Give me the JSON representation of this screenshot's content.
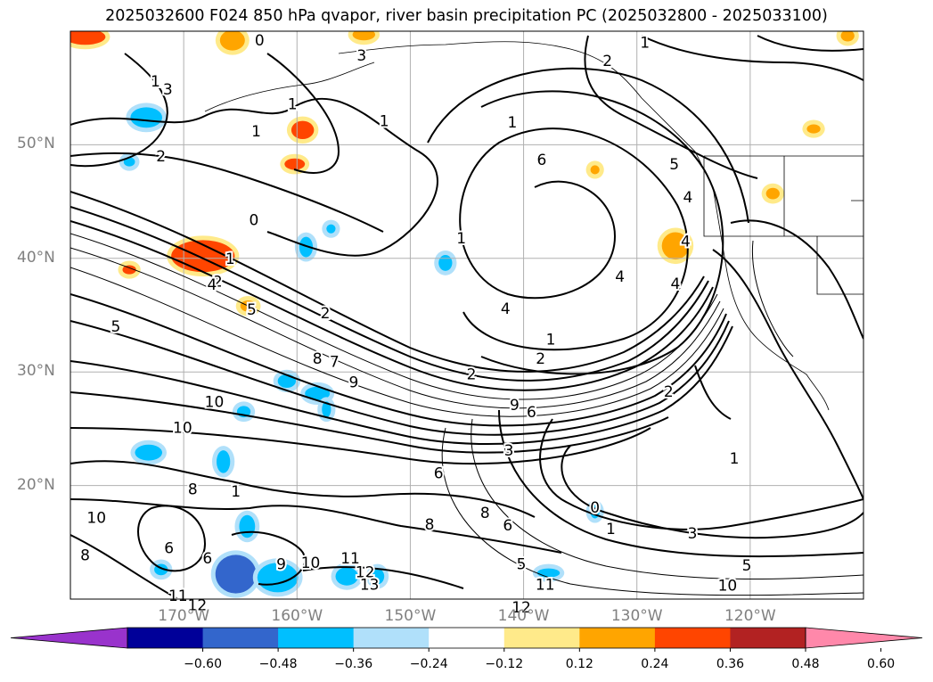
{
  "title": "2025032600 F024 850 hPa qvapor, river basin precipitation PC (2025032800 - 2025033100)",
  "map": {
    "projection": "cylindrical",
    "extent": {
      "lon_min": -180,
      "lon_max": -110,
      "lat_min": 10,
      "lat_max": 60
    },
    "background": "#ffffff",
    "grid_color": "#b0b0b0",
    "contour_color": "#000000",
    "lat_labels": [
      {
        "value": 50,
        "text": "50°N"
      },
      {
        "value": 40,
        "text": "40°N"
      },
      {
        "value": 30,
        "text": "30°N"
      },
      {
        "value": 20,
        "text": "20°N"
      }
    ],
    "lon_labels": [
      {
        "value": -170,
        "text": "170°W"
      },
      {
        "value": -160,
        "text": "160°W"
      },
      {
        "value": -150,
        "text": "150°W"
      },
      {
        "value": -140,
        "text": "140°W"
      },
      {
        "value": -130,
        "text": "130°W"
      },
      {
        "value": -120,
        "text": "120°W"
      }
    ],
    "contour_labels": [
      {
        "text": "2",
        "lon": -172,
        "lat": 49
      },
      {
        "text": "2",
        "lon": -167,
        "lat": 38
      },
      {
        "text": "4",
        "lon": -167.5,
        "lat": 37.7
      },
      {
        "text": "1",
        "lon": -165.9,
        "lat": 40
      },
      {
        "text": "0",
        "lon": -163.8,
        "lat": 43.4
      },
      {
        "text": "5",
        "lon": -164,
        "lat": 35.5
      },
      {
        "text": "2",
        "lon": -157.5,
        "lat": 35.2
      },
      {
        "text": "5",
        "lon": -176,
        "lat": 34
      },
      {
        "text": "8",
        "lon": -158.2,
        "lat": 31.2
      },
      {
        "text": "7",
        "lon": -156.7,
        "lat": 30.9
      },
      {
        "text": "9",
        "lon": -155,
        "lat": 29.1
      },
      {
        "text": "1",
        "lon": -145.5,
        "lat": 41.8
      },
      {
        "text": "4",
        "lon": -141.6,
        "lat": 35.6
      },
      {
        "text": "2",
        "lon": -144.6,
        "lat": 29.8
      },
      {
        "text": "4",
        "lon": -131.5,
        "lat": 38.4
      },
      {
        "text": "1",
        "lon": -137.6,
        "lat": 32.9
      },
      {
        "text": "2",
        "lon": -138.5,
        "lat": 31.2
      },
      {
        "text": "9",
        "lon": -140.8,
        "lat": 27.1
      },
      {
        "text": "6",
        "lon": -139.3,
        "lat": 26.5
      },
      {
        "text": "3",
        "lon": -141.3,
        "lat": 23.1
      },
      {
        "text": "0",
        "lon": -133.7,
        "lat": 18.1
      },
      {
        "text": "1",
        "lon": -132.3,
        "lat": 16.2
      },
      {
        "text": "1",
        "lon": -141,
        "lat": 52
      },
      {
        "text": "6",
        "lon": -138.4,
        "lat": 48.7
      },
      {
        "text": "2",
        "lon": -132.6,
        "lat": 57.4
      },
      {
        "text": "1",
        "lon": -129.3,
        "lat": 59
      },
      {
        "text": "5",
        "lon": -126.7,
        "lat": 48.3
      },
      {
        "text": "4",
        "lon": -125.5,
        "lat": 45.4
      },
      {
        "text": "4",
        "lon": -125.7,
        "lat": 41.5
      },
      {
        "text": "4",
        "lon": -126.6,
        "lat": 37.8
      },
      {
        "text": "2",
        "lon": -127.2,
        "lat": 28.3
      },
      {
        "text": "1",
        "lon": -121.4,
        "lat": 22.4
      },
      {
        "text": "3",
        "lon": -125.1,
        "lat": 15.8
      },
      {
        "text": "5",
        "lon": -120.3,
        "lat": 13
      },
      {
        "text": "1",
        "lon": -172.5,
        "lat": 55.6
      },
      {
        "text": "3",
        "lon": -171.4,
        "lat": 54.9
      },
      {
        "text": "1",
        "lon": -163.6,
        "lat": 51.2
      },
      {
        "text": "0",
        "lon": -163.3,
        "lat": 59.2
      },
      {
        "text": "1",
        "lon": -160.4,
        "lat": 53.6
      },
      {
        "text": "3",
        "lon": -154.3,
        "lat": 57.9
      },
      {
        "text": "1",
        "lon": -152.3,
        "lat": 52.1
      },
      {
        "text": "10",
        "lon": -170.1,
        "lat": 25.1
      },
      {
        "text": "8",
        "lon": -169.2,
        "lat": 19.7
      },
      {
        "text": "6",
        "lon": -171.3,
        "lat": 14.5
      },
      {
        "text": "6",
        "lon": -167.9,
        "lat": 13.6
      },
      {
        "text": "10",
        "lon": -177.7,
        "lat": 17.2
      },
      {
        "text": "8",
        "lon": -178.7,
        "lat": 13.9
      },
      {
        "text": "11",
        "lon": -170.5,
        "lat": 10.3
      },
      {
        "text": "12",
        "lon": -168.8,
        "lat": 9.5
      },
      {
        "text": "9",
        "lon": -161.4,
        "lat": 13.1
      },
      {
        "text": "10",
        "lon": -158.8,
        "lat": 13.2
      },
      {
        "text": "11",
        "lon": -155.3,
        "lat": 13.6
      },
      {
        "text": "12",
        "lon": -154,
        "lat": 12.4
      },
      {
        "text": "13",
        "lon": -153.6,
        "lat": 11.3
      },
      {
        "text": "8",
        "lon": -148.3,
        "lat": 16.6
      },
      {
        "text": "6",
        "lon": -147.5,
        "lat": 21.1
      },
      {
        "text": "8",
        "lon": -143.4,
        "lat": 17.6
      },
      {
        "text": "6",
        "lon": -141.4,
        "lat": 16.5
      },
      {
        "text": "5",
        "lon": -140.2,
        "lat": 13.1
      },
      {
        "text": "11",
        "lon": -138.1,
        "lat": 11.3
      },
      {
        "text": "12",
        "lon": -140.2,
        "lat": 9.3
      },
      {
        "text": "10",
        "lon": -122,
        "lat": 11.2
      },
      {
        "text": "1",
        "lon": -165.4,
        "lat": 19.5
      },
      {
        "text": "10",
        "lon": -167.3,
        "lat": 27.4
      }
    ]
  },
  "colorbar": {
    "segments": [
      {
        "color": "#9933cc",
        "kind": "extend-min"
      },
      {
        "color": "#000099"
      },
      {
        "color": "#3366cc"
      },
      {
        "color": "#00bfff"
      },
      {
        "color": "#b0e0fa"
      },
      {
        "color": "#ffffff"
      },
      {
        "color": "#ffea8a"
      },
      {
        "color": "#ffa500"
      },
      {
        "color": "#ff4500"
      },
      {
        "color": "#b22222"
      },
      {
        "color": "#ff88aa",
        "kind": "extend-max"
      }
    ],
    "ticks": [
      "−0.60",
      "−0.48",
      "−0.36",
      "−0.24",
      "−0.12",
      "0.12",
      "0.24",
      "0.36",
      "0.48",
      "0.60"
    ]
  },
  "precip_blobs": [
    {
      "lon": -178.7,
      "lat": 59.5,
      "level": "#ff4500",
      "rx": 1.8,
      "ry": 0.7
    },
    {
      "lon": -173.3,
      "lat": 52.4,
      "level": "#00bfff",
      "rx": 1.4,
      "ry": 0.9
    },
    {
      "lon": -165.7,
      "lat": 59.2,
      "level": "#ffa500",
      "rx": 1.1,
      "ry": 0.9
    },
    {
      "lon": -159.5,
      "lat": 51.3,
      "level": "#ff4500",
      "rx": 1.0,
      "ry": 0.8
    },
    {
      "lon": -160.2,
      "lat": 48.3,
      "level": "#ff4500",
      "rx": 0.9,
      "ry": 0.5
    },
    {
      "lon": -154.1,
      "lat": 59.7,
      "level": "#ffa500",
      "rx": 1.0,
      "ry": 0.5
    },
    {
      "lon": -168.3,
      "lat": 40.2,
      "level": "#ff4500",
      "rx": 2.8,
      "ry": 1.4
    },
    {
      "lon": -174.8,
      "lat": 39,
      "level": "#ff4500",
      "rx": 0.6,
      "ry": 0.4
    },
    {
      "lon": -159.2,
      "lat": 41,
      "level": "#00bfff",
      "rx": 0.6,
      "ry": 0.9
    },
    {
      "lon": -146.9,
      "lat": 39.6,
      "level": "#00bfff",
      "rx": 0.6,
      "ry": 0.7
    },
    {
      "lon": -164.3,
      "lat": 35.8,
      "level": "#ffa500",
      "rx": 0.7,
      "ry": 0.5
    },
    {
      "lon": -160.9,
      "lat": 29.2,
      "level": "#00bfff",
      "rx": 0.8,
      "ry": 0.6
    },
    {
      "lon": -164.7,
      "lat": 26.5,
      "level": "#00bfff",
      "rx": 0.6,
      "ry": 0.5
    },
    {
      "lon": -158.2,
      "lat": 28.1,
      "level": "#00bfff",
      "rx": 1.1,
      "ry": 0.6
    },
    {
      "lon": -157.4,
      "lat": 26.7,
      "level": "#00bfff",
      "rx": 0.4,
      "ry": 0.7
    },
    {
      "lon": -166.5,
      "lat": 22.1,
      "level": "#00bfff",
      "rx": 0.6,
      "ry": 1.0
    },
    {
      "lon": -173.1,
      "lat": 22.9,
      "level": "#00bfff",
      "rx": 1.2,
      "ry": 0.7
    },
    {
      "lon": -164.4,
      "lat": 16.4,
      "level": "#00bfff",
      "rx": 0.7,
      "ry": 1.0
    },
    {
      "lon": -165.4,
      "lat": 12.2,
      "level": "#3366cc",
      "rx": 1.8,
      "ry": 1.7
    },
    {
      "lon": -161.7,
      "lat": 11.9,
      "level": "#00bfff",
      "rx": 1.8,
      "ry": 1.3
    },
    {
      "lon": -155.6,
      "lat": 12,
      "level": "#00bfff",
      "rx": 1.0,
      "ry": 0.8
    },
    {
      "lon": -152.9,
      "lat": 12,
      "level": "#00bfff",
      "rx": 0.6,
      "ry": 0.7
    },
    {
      "lon": -172,
      "lat": 12.6,
      "level": "#00bfff",
      "rx": 0.6,
      "ry": 0.5
    },
    {
      "lon": -126.6,
      "lat": 41.1,
      "level": "#ffa500",
      "rx": 1.2,
      "ry": 1.2
    },
    {
      "lon": -118,
      "lat": 45.7,
      "level": "#ffa500",
      "rx": 0.6,
      "ry": 0.5
    },
    {
      "lon": -114.4,
      "lat": 51.4,
      "level": "#ffa500",
      "rx": 0.6,
      "ry": 0.4
    },
    {
      "lon": -111.4,
      "lat": 59.6,
      "level": "#ffa500",
      "rx": 0.6,
      "ry": 0.5
    },
    {
      "lon": -133.7,
      "lat": 47.8,
      "level": "#ffa500",
      "rx": 0.4,
      "ry": 0.4
    },
    {
      "lon": -137.8,
      "lat": 12.3,
      "level": "#00bfff",
      "rx": 1.0,
      "ry": 0.4
    },
    {
      "lon": -133.7,
      "lat": 17.7,
      "level": "#00bfff",
      "rx": 0.4,
      "ry": 0.6
    },
    {
      "lon": -157,
      "lat": 42.6,
      "level": "#00bfff",
      "rx": 0.4,
      "ry": 0.4
    },
    {
      "lon": -174.8,
      "lat": 48.5,
      "level": "#00bfff",
      "rx": 0.5,
      "ry": 0.4
    }
  ]
}
